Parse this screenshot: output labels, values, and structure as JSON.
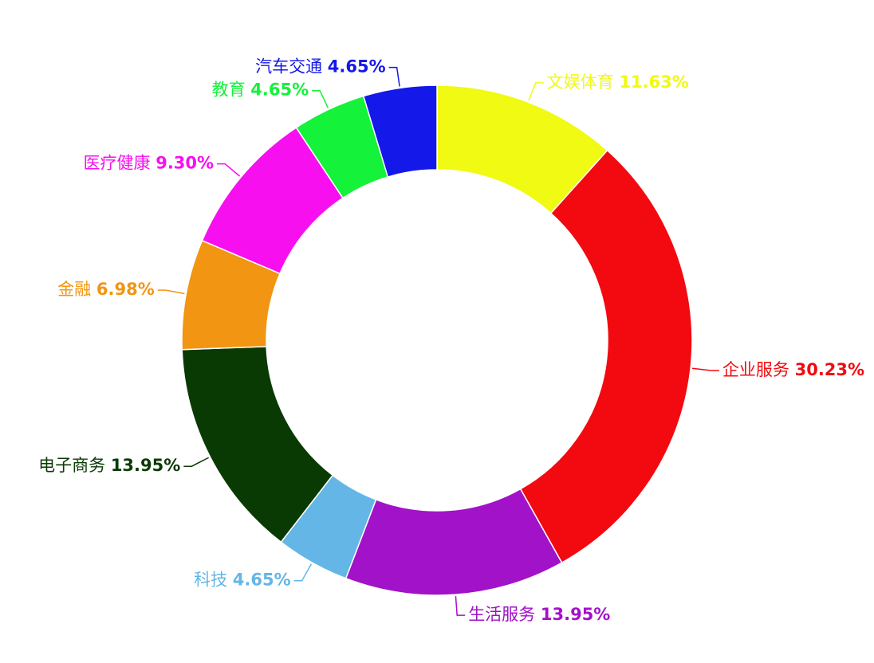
{
  "chart_data": {
    "type": "donut",
    "categories": [
      "文娱体育",
      "企业服务",
      "生活服务",
      "科技",
      "电子商务",
      "金融",
      "医疗健康",
      "教育",
      "汽车交通"
    ],
    "values": [
      11.63,
      30.23,
      13.95,
      4.65,
      13.95,
      6.98,
      9.3,
      4.65,
      4.65
    ],
    "value_labels": [
      "11.63%",
      "30.23%",
      "13.95%",
      "4.65%",
      "13.95%",
      "6.98%",
      "9.30%",
      "4.65%",
      "4.65%"
    ],
    "colors": [
      "#f0fa12",
      "#f20a10",
      "#a212c8",
      "#63b6e6",
      "#0a3a04",
      "#f29512",
      "#f70ff0",
      "#14f23a",
      "#1418e8"
    ]
  }
}
